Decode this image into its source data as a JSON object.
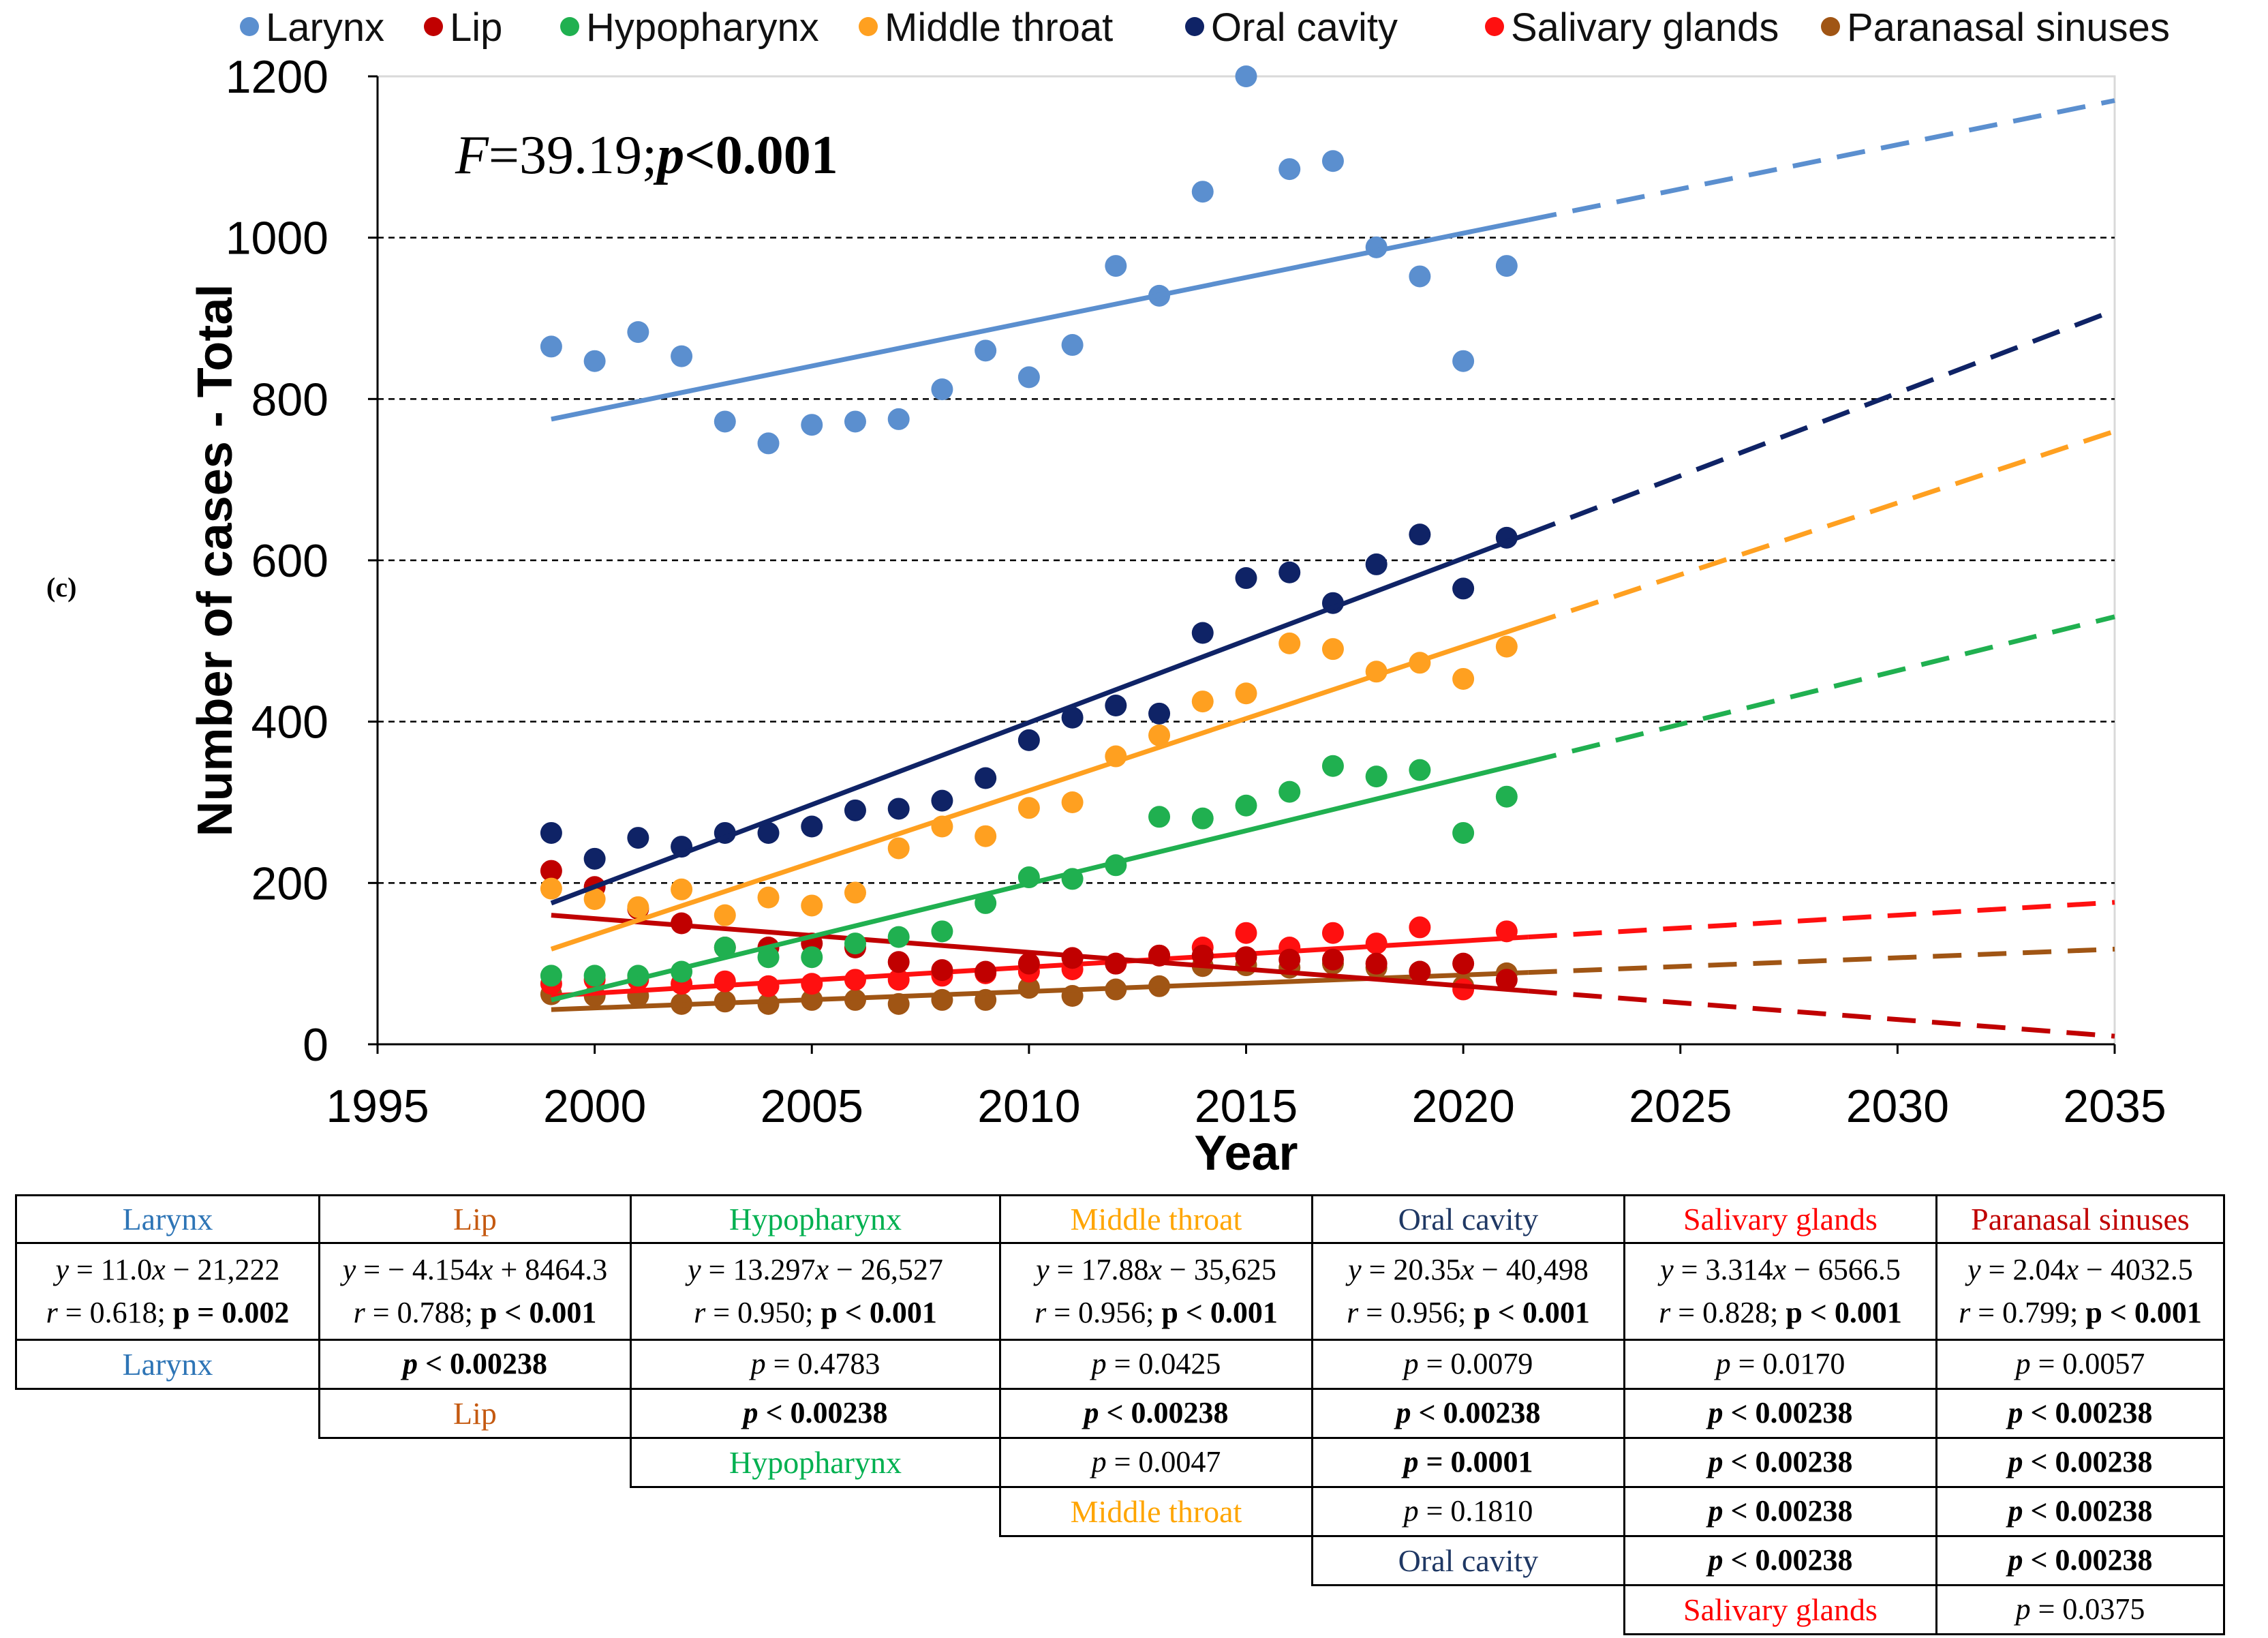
{
  "panel_label": "(c)",
  "colors": {
    "Larynx": "#5b8fcf",
    "Lip": "#c00000",
    "Hypopharynx": "#20b050",
    "Middle throat": "#ffa020",
    "Oral cavity": "#0f2366",
    "Salivary glands": "#ff1010",
    "Paranasal sinuses": "#a05514"
  },
  "table_colors": {
    "Larynx": "#2e75b6",
    "Lip": "#c55a11",
    "Hypopharynx": "#00b050",
    "Middle throat": "#ffa500",
    "Oral cavity": "#1f3864",
    "Salivary glands": "#ff0000",
    "Paranasal sinuses": "#c00000"
  },
  "chart_data": {
    "type": "scatter",
    "title": "",
    "annotation": {
      "F_label": "F",
      "F_value": "=39.19;",
      "p_label": "p",
      "p_value": "<0.001"
    },
    "xlabel": "Year",
    "ylabel": "Number of cases - Total",
    "xlim": [
      1995,
      2035
    ],
    "ylim": [
      0,
      1200
    ],
    "x_ticks": [
      1995,
      2000,
      2005,
      2010,
      2015,
      2020,
      2025,
      2030,
      2035
    ],
    "y_ticks": [
      0,
      200,
      400,
      600,
      800,
      1000,
      1200
    ],
    "grid": "horizontal dashed",
    "legend_position": "top",
    "x": [
      1999,
      2000,
      2001,
      2002,
      2003,
      2004,
      2005,
      2006,
      2007,
      2008,
      2009,
      2010,
      2011,
      2012,
      2013,
      2014,
      2015,
      2016,
      2017,
      2018,
      2019,
      2020,
      2021
    ],
    "series": [
      {
        "name": "Larynx",
        "values": [
          865,
          847,
          883,
          853,
          772,
          745,
          768,
          772,
          775,
          812,
          860,
          827,
          867,
          965,
          928,
          1057,
          1200,
          1085,
          1095,
          988,
          952,
          847,
          965
        ],
        "trend": [
          [
            1999,
            775
          ],
          [
            2021.5,
            1022
          ]
        ],
        "forecast": [
          [
            2021.5,
            1022
          ],
          [
            2035,
            1170
          ]
        ]
      },
      {
        "name": "Lip",
        "values": [
          215,
          195,
          168,
          150,
          120,
          120,
          125,
          120,
          102,
          92,
          90,
          100,
          107,
          100,
          110,
          110,
          108,
          105,
          105,
          100,
          90,
          100,
          80
        ],
        "trend": [
          [
            1999,
            160
          ],
          [
            2021.5,
            66
          ]
        ],
        "forecast": [
          [
            2021.5,
            66
          ],
          [
            2035,
            10
          ]
        ]
      },
      {
        "name": "Hypopharynx",
        "values": [
          85,
          85,
          85,
          90,
          120,
          108,
          108,
          125,
          133,
          140,
          175,
          207,
          205,
          222,
          282,
          280,
          296,
          313,
          345,
          332,
          340,
          262,
          307
        ],
        "trend": [
          [
            1999,
            55
          ],
          [
            2021.5,
            350
          ]
        ],
        "forecast": [
          [
            2021.5,
            350
          ],
          [
            2035,
            530
          ]
        ]
      },
      {
        "name": "Middle throat",
        "values": [
          193,
          180,
          170,
          192,
          160,
          182,
          172,
          188,
          243,
          270,
          258,
          293,
          300,
          357,
          383,
          425,
          435,
          497,
          490,
          462,
          473,
          453,
          493
        ],
        "trend": [
          [
            1999,
            118
          ],
          [
            2021.5,
            520
          ]
        ],
        "forecast": [
          [
            2021.5,
            520
          ],
          [
            2035,
            760
          ]
        ]
      },
      {
        "name": "Oral cavity",
        "values": [
          262,
          230,
          256,
          245,
          262,
          262,
          270,
          290,
          292,
          302,
          330,
          377,
          405,
          420,
          410,
          510,
          578,
          585,
          547,
          595,
          632,
          565,
          628
        ],
        "trend": [
          [
            1999,
            175
          ],
          [
            2021.5,
            633
          ]
        ],
        "forecast": [
          [
            2021.5,
            633
          ],
          [
            2035,
            910
          ]
        ]
      },
      {
        "name": "Salivary glands",
        "values": [
          75,
          80,
          80,
          75,
          78,
          72,
          75,
          80,
          80,
          85,
          88,
          90,
          93,
          100,
          110,
          120,
          138,
          120,
          138,
          125,
          145,
          68,
          140
        ],
        "trend": [
          [
            1999,
            60
          ],
          [
            2021.5,
            133
          ]
        ],
        "forecast": [
          [
            2021.5,
            133
          ],
          [
            2035,
            176
          ]
        ]
      },
      {
        "name": "Paranasal sinuses",
        "values": [
          62,
          60,
          60,
          50,
          53,
          50,
          55,
          55,
          50,
          55,
          55,
          70,
          60,
          68,
          72,
          97,
          98,
          95,
          100,
          95,
          90,
          72,
          88
        ],
        "trend": [
          [
            1999,
            43
          ],
          [
            2021.5,
            89
          ]
        ],
        "forecast": [
          [
            2021.5,
            89
          ],
          [
            2035,
            118
          ]
        ]
      }
    ]
  },
  "table": {
    "headers": [
      "Larynx",
      "Lip",
      "Hypopharynx",
      "Middle throat",
      "Oral cavity",
      "Salivary glands",
      "Paranasal sinuses"
    ],
    "equations": [
      {
        "eq_a": "y",
        "eq_b": " = 11.0",
        "eq_c": "x",
        "eq_d": " − 21,222",
        "r_a": "r",
        "r_b": " = 0.618; ",
        "p": "p = 0.002"
      },
      {
        "eq_a": "y",
        "eq_b": " = − 4.154",
        "eq_c": "x",
        "eq_d": " + 8464.3",
        "r_a": "r",
        "r_b": " = 0.788; ",
        "p": "p < 0.001"
      },
      {
        "eq_a": "y",
        "eq_b": " = 13.297",
        "eq_c": "x",
        "eq_d": " − 26,527",
        "r_a": "r",
        "r_b": " = 0.950; ",
        "p": "p < 0.001"
      },
      {
        "eq_a": "y",
        "eq_b": " = 17.88",
        "eq_c": "x",
        "eq_d": " − 35,625",
        "r_a": "r",
        "r_b": " = 0.956; ",
        "p": "p < 0.001"
      },
      {
        "eq_a": "y",
        "eq_b": " = 20.35",
        "eq_c": "x",
        "eq_d": " − 40,498",
        "r_a": "r",
        "r_b": " = 0.956; ",
        "p": "p < 0.001"
      },
      {
        "eq_a": "y",
        "eq_b": " = 3.314",
        "eq_c": "x",
        "eq_d": " − 6566.5",
        "r_a": "r",
        "r_b": " = 0.828; ",
        "p": "p < 0.001"
      },
      {
        "eq_a": "y",
        "eq_b": " = 2.04",
        "eq_c": "x",
        "eq_d": " − 4032.5",
        "r_a": "r",
        "r_b": " = 0.799; ",
        "p": "p < 0.001"
      }
    ],
    "pairwise": [
      {
        "row": "Larynx",
        "cells": [
          {
            "t": "p < 0.00238",
            "b": true
          },
          {
            "t": "p = 0.4783",
            "b": false
          },
          {
            "t": "p = 0.0425",
            "b": false
          },
          {
            "t": "p = 0.0079",
            "b": false
          },
          {
            "t": "p = 0.0170",
            "b": false
          },
          {
            "t": "p = 0.0057",
            "b": false
          }
        ]
      },
      {
        "row": "Lip",
        "cells": [
          {
            "t": "p < 0.00238",
            "b": true
          },
          {
            "t": "p < 0.00238",
            "b": true
          },
          {
            "t": "p < 0.00238",
            "b": true
          },
          {
            "t": "p < 0.00238",
            "b": true
          },
          {
            "t": "p < 0.00238",
            "b": true
          }
        ]
      },
      {
        "row": "Hypopharynx",
        "cells": [
          {
            "t": "p = 0.0047",
            "b": false
          },
          {
            "t": "p = 0.0001",
            "b": true
          },
          {
            "t": "p < 0.00238",
            "b": true
          },
          {
            "t": "p < 0.00238",
            "b": true
          }
        ]
      },
      {
        "row": "Middle throat",
        "cells": [
          {
            "t": "p = 0.1810",
            "b": false
          },
          {
            "t": "p < 0.00238",
            "b": true
          },
          {
            "t": "p < 0.00238",
            "b": true
          }
        ]
      },
      {
        "row": "Oral cavity",
        "cells": [
          {
            "t": "p < 0.00238",
            "b": true
          },
          {
            "t": "p < 0.00238",
            "b": true
          }
        ]
      },
      {
        "row": "Salivary glands",
        "cells": [
          {
            "t": "p = 0.0375",
            "b": false
          }
        ]
      }
    ]
  }
}
